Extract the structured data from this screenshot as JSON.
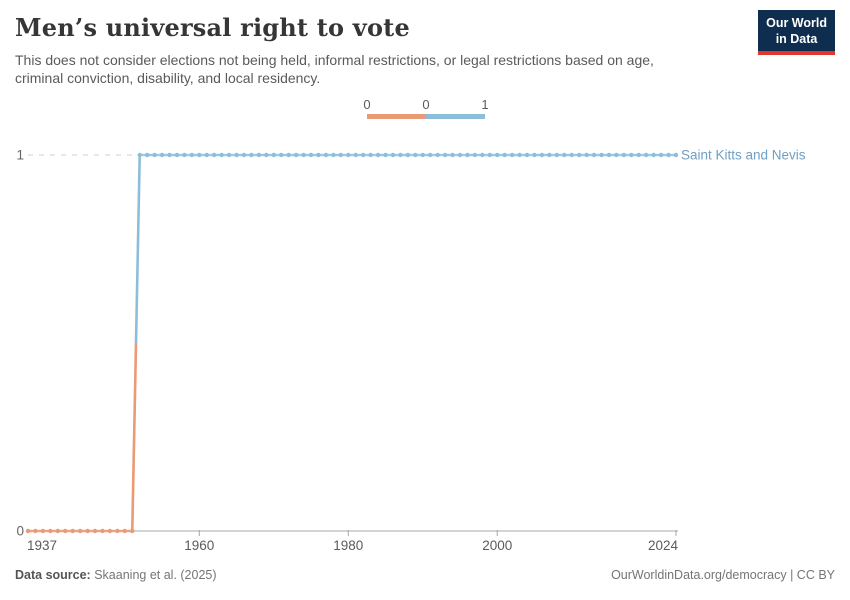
{
  "header": {
    "title": "Men’s universal right to vote",
    "subtitle": "This does not consider elections not being held, informal restrictions, or legal restrictions based on age, criminal conviction, disability, and local residency.",
    "logo": {
      "line1": "Our World",
      "line2": "in Data",
      "bg_color": "#0f2d4e",
      "accent_color": "#e0362c"
    }
  },
  "legend": {
    "labels": [
      "0",
      "0",
      "1"
    ],
    "colors": [
      "#EA9A74",
      "#8CBEDA"
    ]
  },
  "chart_data": {
    "type": "line",
    "title": "Men's universal right to vote",
    "xlabel": "",
    "ylabel": "",
    "xlim": [
      1937,
      2024
    ],
    "ylim": [
      0,
      1
    ],
    "x_ticks": [
      1937,
      1960,
      1980,
      2000,
      2024
    ],
    "y_ticks": [
      0,
      1
    ],
    "grid": "dashed horizontal gridline at y=1, solid axis at y=0",
    "legend_position": "top-center",
    "marker": "circle markers at every year",
    "series": [
      {
        "name": "Saint Kitts and Nevis",
        "label_color": "#6E9FC4",
        "segments": [
          {
            "start_year": 1937,
            "end_year": 1951,
            "value": 0,
            "color": "#EA9A74"
          },
          {
            "start_year": 1952,
            "end_year": 2024,
            "value": 1,
            "color": "#8CBEDA"
          }
        ]
      }
    ]
  },
  "footer": {
    "source_label": "Data source:",
    "source_value": "Skaaning et al. (2025)",
    "credit": "OurWorldinData.org/democracy | CC BY"
  }
}
